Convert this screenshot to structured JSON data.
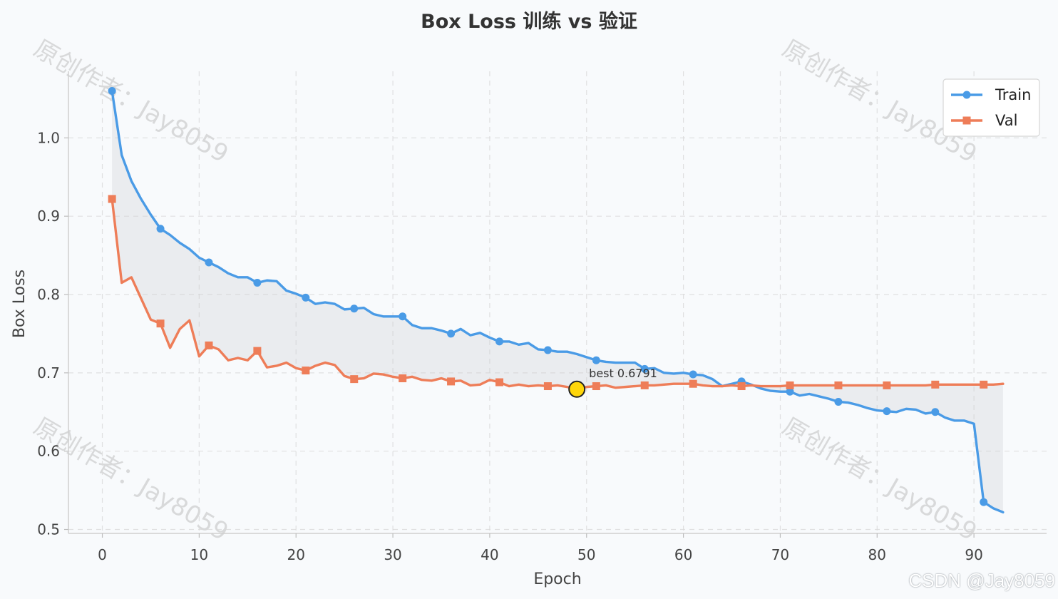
{
  "chart_data": {
    "type": "line",
    "title": "Box Loss 训练 vs 验证",
    "xlabel": "Epoch",
    "ylabel": "Box Loss",
    "xlim": [
      -3.5,
      97.5
    ],
    "ylim": [
      0.495,
      1.085
    ],
    "xticks": [
      0,
      10,
      20,
      30,
      40,
      50,
      60,
      70,
      80,
      90
    ],
    "yticks": [
      0.5,
      0.6,
      0.7,
      0.8,
      0.9,
      1.0
    ],
    "ytick_labels": [
      "0.5",
      "0.6",
      "0.7",
      "0.8",
      "0.9",
      "1.0"
    ],
    "grid": true,
    "legend_position": "top-right",
    "fill_between": true,
    "x": [
      1,
      2,
      3,
      4,
      5,
      6,
      7,
      8,
      9,
      10,
      11,
      12,
      13,
      14,
      15,
      16,
      17,
      18,
      19,
      20,
      21,
      22,
      23,
      24,
      25,
      26,
      27,
      28,
      29,
      30,
      31,
      32,
      33,
      34,
      35,
      36,
      37,
      38,
      39,
      40,
      41,
      42,
      43,
      44,
      45,
      46,
      47,
      48,
      49,
      50,
      51,
      52,
      53,
      54,
      55,
      56,
      57,
      58,
      59,
      60,
      61,
      62,
      63,
      64,
      65,
      66,
      67,
      68,
      69,
      70,
      71,
      72,
      73,
      74,
      75,
      76,
      77,
      78,
      79,
      80,
      81,
      82,
      83,
      84,
      85,
      86,
      87,
      88,
      89,
      90,
      91,
      92,
      93
    ],
    "series": [
      {
        "name": "Train",
        "color": "#4a9be6",
        "marker": "circle",
        "marker_every": 5,
        "values": [
          1.06,
          0.978,
          0.945,
          0.922,
          0.902,
          0.884,
          0.876,
          0.866,
          0.858,
          0.847,
          0.841,
          0.835,
          0.827,
          0.822,
          0.822,
          0.815,
          0.818,
          0.817,
          0.805,
          0.801,
          0.796,
          0.788,
          0.79,
          0.788,
          0.781,
          0.782,
          0.783,
          0.775,
          0.772,
          0.772,
          0.772,
          0.761,
          0.757,
          0.757,
          0.754,
          0.75,
          0.756,
          0.748,
          0.751,
          0.745,
          0.74,
          0.74,
          0.736,
          0.738,
          0.73,
          0.729,
          0.727,
          0.727,
          0.724,
          0.72,
          0.716,
          0.714,
          0.713,
          0.713,
          0.713,
          0.705,
          0.706,
          0.7,
          0.699,
          0.7,
          0.698,
          0.697,
          0.692,
          0.683,
          0.686,
          0.689,
          0.685,
          0.68,
          0.677,
          0.676,
          0.676,
          0.671,
          0.673,
          0.67,
          0.667,
          0.663,
          0.662,
          0.659,
          0.655,
          0.652,
          0.651,
          0.65,
          0.654,
          0.653,
          0.648,
          0.65,
          0.643,
          0.639,
          0.639,
          0.635,
          0.535,
          0.527,
          0.522
        ]
      },
      {
        "name": "Val",
        "color": "#ee7d58",
        "marker": "square",
        "marker_every": 5,
        "values": [
          0.922,
          0.815,
          0.822,
          0.795,
          0.768,
          0.763,
          0.732,
          0.756,
          0.767,
          0.721,
          0.735,
          0.73,
          0.716,
          0.719,
          0.716,
          0.728,
          0.707,
          0.709,
          0.713,
          0.706,
          0.703,
          0.709,
          0.713,
          0.71,
          0.696,
          0.692,
          0.693,
          0.699,
          0.698,
          0.695,
          0.693,
          0.695,
          0.691,
          0.69,
          0.693,
          0.689,
          0.69,
          0.684,
          0.685,
          0.691,
          0.688,
          0.683,
          0.685,
          0.683,
          0.684,
          0.683,
          0.684,
          0.682,
          0.679,
          0.682,
          0.683,
          0.684,
          0.681,
          0.682,
          0.683,
          0.684,
          0.684,
          0.685,
          0.686,
          0.686,
          0.686,
          0.684,
          0.683,
          0.683,
          0.684,
          0.683,
          0.684,
          0.683,
          0.683,
          0.683,
          0.684,
          0.684,
          0.684,
          0.684,
          0.684,
          0.684,
          0.684,
          0.684,
          0.684,
          0.684,
          0.684,
          0.684,
          0.684,
          0.684,
          0.684,
          0.685,
          0.685,
          0.685,
          0.685,
          0.685,
          0.685,
          0.685,
          0.686
        ]
      }
    ],
    "annotations": [
      {
        "label": "best 0.6791",
        "x": 49,
        "y": 0.6791,
        "marker_color": "#ffd60a"
      }
    ]
  },
  "watermark": {
    "text": "原创作者：Jay8059"
  },
  "credit": {
    "text": "CSDN @Jay8059"
  }
}
